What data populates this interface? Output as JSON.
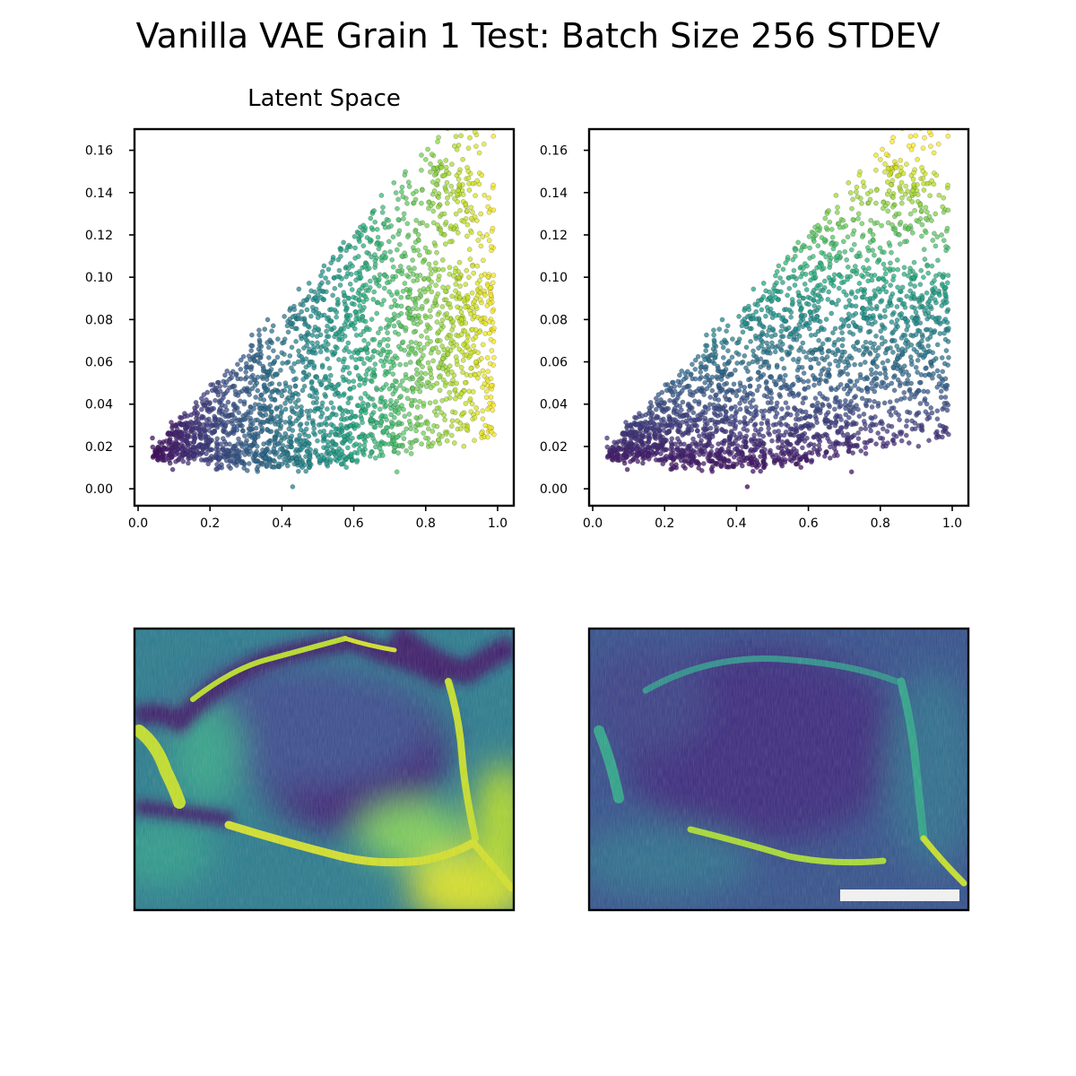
{
  "figure": {
    "title": "Vanilla VAE Grain 1 Test: Batch Size 256 STDEV"
  },
  "chart_data": [
    {
      "type": "scatter",
      "title": "Latent Space",
      "color_by": "x",
      "colormap": "viridis",
      "xlim": [
        -0.01,
        1.045
      ],
      "ylim": [
        -0.008,
        0.17
      ],
      "x_ticks": [
        0.0,
        0.2,
        0.4,
        0.6,
        0.8,
        1.0
      ],
      "x_tick_labels": [
        "0.0",
        "0.2",
        "0.4",
        "0.6",
        "0.8",
        "1.0"
      ],
      "y_ticks": [
        0.0,
        0.02,
        0.04,
        0.06,
        0.08,
        0.1,
        0.12,
        0.14,
        0.16
      ],
      "y_tick_labels": [
        "0.00",
        "0.02",
        "0.04",
        "0.06",
        "0.08",
        "0.10",
        "0.12",
        "0.14",
        "0.16"
      ],
      "sample_points": [
        [
          0.04,
          0.024
        ],
        [
          0.06,
          0.022
        ],
        [
          0.09,
          0.026
        ],
        [
          0.12,
          0.021
        ],
        [
          0.15,
          0.028
        ],
        [
          0.18,
          0.02
        ],
        [
          0.22,
          0.03
        ],
        [
          0.25,
          0.018
        ],
        [
          0.28,
          0.036
        ],
        [
          0.31,
          0.025
        ],
        [
          0.35,
          0.042
        ],
        [
          0.38,
          0.022
        ],
        [
          0.41,
          0.05
        ],
        [
          0.43,
          0.001
        ],
        [
          0.45,
          0.03
        ],
        [
          0.48,
          0.06
        ],
        [
          0.5,
          0.038
        ],
        [
          0.53,
          0.072
        ],
        [
          0.55,
          0.028
        ],
        [
          0.58,
          0.085
        ],
        [
          0.6,
          0.048
        ],
        [
          0.62,
          0.1
        ],
        [
          0.65,
          0.035
        ],
        [
          0.68,
          0.11
        ],
        [
          0.7,
          0.06
        ],
        [
          0.72,
          0.008
        ],
        [
          0.74,
          0.13
        ],
        [
          0.76,
          0.04
        ],
        [
          0.78,
          0.09
        ],
        [
          0.8,
          0.024
        ],
        [
          0.82,
          0.145
        ],
        [
          0.84,
          0.07
        ],
        [
          0.86,
          0.135
        ],
        [
          0.88,
          0.162
        ],
        [
          0.9,
          0.08
        ],
        [
          0.92,
          0.1
        ],
        [
          0.94,
          0.06
        ],
        [
          0.96,
          0.108
        ],
        [
          0.98,
          0.095
        ],
        [
          0.99,
          0.062
        ]
      ]
    },
    {
      "type": "scatter",
      "title": "",
      "color_by": "y",
      "colormap": "viridis",
      "xlim": [
        -0.01,
        1.045
      ],
      "ylim": [
        -0.008,
        0.17
      ],
      "x_ticks": [
        0.0,
        0.2,
        0.4,
        0.6,
        0.8,
        1.0
      ],
      "x_tick_labels": [
        "0.0",
        "0.2",
        "0.4",
        "0.6",
        "0.8",
        "1.0"
      ],
      "y_ticks": [
        0.0,
        0.02,
        0.04,
        0.06,
        0.08,
        0.1,
        0.12,
        0.14,
        0.16
      ],
      "y_tick_labels": [
        "0.00",
        "0.02",
        "0.04",
        "0.06",
        "0.08",
        "0.10",
        "0.12",
        "0.14",
        "0.16"
      ],
      "sample_points": [
        [
          0.04,
          0.024
        ],
        [
          0.06,
          0.022
        ],
        [
          0.09,
          0.026
        ],
        [
          0.12,
          0.021
        ],
        [
          0.15,
          0.028
        ],
        [
          0.18,
          0.02
        ],
        [
          0.22,
          0.03
        ],
        [
          0.25,
          0.018
        ],
        [
          0.28,
          0.036
        ],
        [
          0.31,
          0.025
        ],
        [
          0.35,
          0.042
        ],
        [
          0.38,
          0.022
        ],
        [
          0.41,
          0.05
        ],
        [
          0.43,
          0.001
        ],
        [
          0.45,
          0.03
        ],
        [
          0.48,
          0.06
        ],
        [
          0.5,
          0.038
        ],
        [
          0.53,
          0.072
        ],
        [
          0.55,
          0.028
        ],
        [
          0.58,
          0.085
        ],
        [
          0.6,
          0.048
        ],
        [
          0.62,
          0.1
        ],
        [
          0.65,
          0.035
        ],
        [
          0.68,
          0.11
        ],
        [
          0.7,
          0.06
        ],
        [
          0.72,
          0.008
        ],
        [
          0.74,
          0.13
        ],
        [
          0.76,
          0.04
        ],
        [
          0.78,
          0.09
        ],
        [
          0.8,
          0.024
        ],
        [
          0.82,
          0.145
        ],
        [
          0.84,
          0.07
        ],
        [
          0.86,
          0.135
        ],
        [
          0.88,
          0.162
        ],
        [
          0.9,
          0.08
        ],
        [
          0.92,
          0.1
        ],
        [
          0.94,
          0.06
        ],
        [
          0.96,
          0.108
        ],
        [
          0.98,
          0.095
        ],
        [
          0.99,
          0.062
        ]
      ]
    },
    {
      "type": "heatmap",
      "title": "",
      "colormap": "viridis",
      "axes_ticks": false
    },
    {
      "type": "heatmap",
      "title": "",
      "colormap": "viridis",
      "axes_ticks": false,
      "scale_bar": true
    }
  ]
}
